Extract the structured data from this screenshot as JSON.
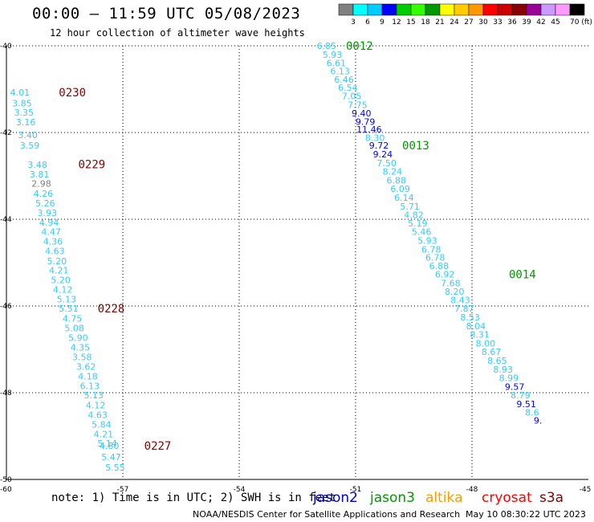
{
  "header": {
    "title": "00:00 – 11:59 UTC 05/08/2023",
    "subtitle": "12 hour collection of altimeter wave heights"
  },
  "footer": {
    "note": "note: 1) Time is in UTC; 2) SWH is in feet",
    "credit": "NOAA/NESDIS Center for Satellite Applications and Research",
    "timestamp": "May 10 08:30:22 UTC 2023"
  },
  "satellites": [
    {
      "name": "jason2",
      "color": "#0000cc"
    },
    {
      "name": "jason3",
      "color": "#009900"
    },
    {
      "name": "altika",
      "color": "#ff9900"
    },
    {
      "name": "cryosat",
      "color": "#ff0000"
    },
    {
      "name": "s3a",
      "color": "#880000"
    }
  ],
  "colorbar": {
    "colors": [
      "#808080",
      "#00ffff",
      "#00ccff",
      "#0000ff",
      "#00cc00",
      "#33ff00",
      "#009900",
      "#ffff00",
      "#ffcc00",
      "#ff9900",
      "#ff0000",
      "#cc0000",
      "#880000",
      "#990099",
      "#cc99ff",
      "#ff99ff",
      "#000000"
    ],
    "labels": [
      "3",
      "6",
      "9",
      "12",
      "15",
      "18",
      "21",
      "24",
      "27",
      "30",
      "33",
      "36",
      "39",
      "42",
      "45",
      "70 (ft)"
    ]
  },
  "chart_data": {
    "type": "scatter",
    "xlabel": "",
    "ylabel": "",
    "xlim": [
      -60,
      -45
    ],
    "ylim": [
      -50,
      -40
    ],
    "x_ticks": [
      "-60",
      "-57",
      "-54",
      "-51",
      "-48",
      "-45"
    ],
    "y_ticks": [
      "-40",
      "-42",
      "-44",
      "-46",
      "-48",
      "-50"
    ],
    "grid": true,
    "series": [
      {
        "pass": "0230",
        "label_lat": -41.07,
        "label_lon": -58.3,
        "label_color": "#880000",
        "points": [
          {
            "v": "4.01",
            "lat": -41.07,
            "lon": -59.65,
            "c": "#33ccff"
          },
          {
            "v": "3.85",
            "lat": -41.32,
            "lon": -59.6,
            "c": "#33ccff"
          },
          {
            "v": "3.35",
            "lat": -41.54,
            "lon": -59.55,
            "c": "#33ccff"
          },
          {
            "v": "3.16",
            "lat": -41.76,
            "lon": -59.5,
            "c": "#33ccff"
          },
          {
            "v": "3.40",
            "lat": -42.06,
            "lon": -59.45,
            "c": "#33ccff"
          },
          {
            "v": "3.59",
            "lat": -42.3,
            "lon": -59.4,
            "c": "#33ccff"
          }
        ]
      },
      {
        "pass": "0229",
        "label_lat": -42.73,
        "label_lon": -57.8,
        "label_color": "#880000",
        "points": [
          {
            "v": "3.48",
            "lat": -42.74,
            "lon": -59.2,
            "c": "#33ccff"
          },
          {
            "v": "3.81",
            "lat": -42.96,
            "lon": -59.15,
            "c": "#33ccff"
          },
          {
            "v": "2.98",
            "lat": -43.18,
            "lon": -59.1,
            "c": "#808080"
          },
          {
            "v": "4.26",
            "lat": -43.41,
            "lon": -59.05,
            "c": "#33ccff"
          },
          {
            "v": "5.26",
            "lat": -43.63,
            "lon": -59.0,
            "c": "#33ccff"
          },
          {
            "v": "3.93",
            "lat": -43.85,
            "lon": -58.95,
            "c": "#33ccff"
          },
          {
            "v": "4.94",
            "lat": -44.07,
            "lon": -58.9,
            "c": "#33ccff"
          },
          {
            "v": "4.47",
            "lat": -44.29,
            "lon": -58.85,
            "c": "#33ccff"
          },
          {
            "v": "4.36",
            "lat": -44.51,
            "lon": -58.8,
            "c": "#33ccff"
          },
          {
            "v": "4.63",
            "lat": -44.73,
            "lon": -58.75,
            "c": "#33ccff"
          },
          {
            "v": "5.20",
            "lat": -44.96,
            "lon": -58.7,
            "c": "#33ccff"
          },
          {
            "v": "4.21",
            "lat": -45.18,
            "lon": -58.65,
            "c": "#33ccff"
          },
          {
            "v": "5.20",
            "lat": -45.4,
            "lon": -58.6,
            "c": "#33ccff"
          },
          {
            "v": "4.12",
            "lat": -45.62,
            "lon": -58.55,
            "c": "#33ccff"
          },
          {
            "v": "5.13",
            "lat": -45.84,
            "lon": -58.45,
            "c": "#33ccff"
          }
        ]
      },
      {
        "pass": "0228",
        "label_lat": -46.06,
        "label_lon": -57.3,
        "label_color": "#880000",
        "points": [
          {
            "v": "5.51",
            "lat": -46.06,
            "lon": -58.4,
            "c": "#33ccff"
          },
          {
            "v": "4.75",
            "lat": -46.29,
            "lon": -58.3,
            "c": "#33ccff"
          },
          {
            "v": "5.08",
            "lat": -46.51,
            "lon": -58.25,
            "c": "#33ccff"
          },
          {
            "v": "5.90",
            "lat": -46.73,
            "lon": -58.15,
            "c": "#33ccff"
          },
          {
            "v": "4.35",
            "lat": -46.95,
            "lon": -58.1,
            "c": "#33ccff"
          },
          {
            "v": "3.58",
            "lat": -47.18,
            "lon": -58.05,
            "c": "#33ccff"
          },
          {
            "v": "3.62",
            "lat": -47.4,
            "lon": -57.95,
            "c": "#33ccff"
          },
          {
            "v": "4.18",
            "lat": -47.62,
            "lon": -57.9,
            "c": "#33ccff"
          },
          {
            "v": "6.13",
            "lat": -47.84,
            "lon": -57.85,
            "c": "#33ccff"
          },
          {
            "v": "5.13",
            "lat": -48.06,
            "lon": -57.75,
            "c": "#33ccff"
          },
          {
            "v": "4.12",
            "lat": -48.29,
            "lon": -57.7,
            "c": "#33ccff"
          },
          {
            "v": "4.63",
            "lat": -48.51,
            "lon": -57.65,
            "c": "#33ccff"
          },
          {
            "v": "5.84",
            "lat": -48.73,
            "lon": -57.55,
            "c": "#33ccff"
          },
          {
            "v": "4.21",
            "lat": -48.95,
            "lon": -57.5,
            "c": "#33ccff"
          },
          {
            "v": "5.14",
            "lat": -49.17,
            "lon": -57.4,
            "c": "#33ccff"
          }
        ]
      },
      {
        "pass": "0227",
        "label_lat": -49.22,
        "label_lon": -56.1,
        "label_color": "#880000",
        "points": [
          {
            "v": "4.80",
            "lat": -49.22,
            "lon": -57.35,
            "c": "#33ccff"
          },
          {
            "v": "5.47",
            "lat": -49.48,
            "lon": -57.3,
            "c": "#33ccff"
          },
          {
            "v": "5.55",
            "lat": -49.72,
            "lon": -57.2,
            "c": "#33ccff"
          }
        ]
      },
      {
        "pass": "0012",
        "label_lat": -40.0,
        "label_lon": -50.9,
        "label_color": "#009900",
        "points": [
          {
            "v": "6.85",
            "lat": -40.0,
            "lon": -51.75,
            "c": "#33ccff"
          },
          {
            "v": "5.93",
            "lat": -40.2,
            "lon": -51.6,
            "c": "#33ccff"
          },
          {
            "v": "6.61",
            "lat": -40.4,
            "lon": -51.5,
            "c": "#33ccff"
          },
          {
            "v": "6.13",
            "lat": -40.58,
            "lon": -51.4,
            "c": "#33ccff"
          },
          {
            "v": "6.46",
            "lat": -40.78,
            "lon": -51.3,
            "c": "#33ccff"
          },
          {
            "v": "6.54",
            "lat": -40.96,
            "lon": -51.2,
            "c": "#33ccff"
          },
          {
            "v": "7.05",
            "lat": -41.16,
            "lon": -51.1,
            "c": "#33ccff"
          },
          {
            "v": "7.75",
            "lat": -41.36,
            "lon": -50.95,
            "c": "#33ccff"
          },
          {
            "v": "9.40",
            "lat": -41.56,
            "lon": -50.85,
            "c": "#0000ff"
          },
          {
            "v": "9.79",
            "lat": -41.75,
            "lon": -50.75,
            "c": "#0000ff"
          },
          {
            "v": "11.46",
            "lat": -41.93,
            "lon": -50.65,
            "c": "#0000ff"
          },
          {
            "v": "8.30",
            "lat": -42.12,
            "lon": -50.5,
            "c": "#33ccff"
          },
          {
            "v": "9.72",
            "lat": -42.3,
            "lon": -50.4,
            "c": "#0000ff"
          }
        ]
      },
      {
        "pass": "0013",
        "label_lat": -42.3,
        "label_lon": -49.45,
        "label_color": "#009900",
        "points": [
          {
            "v": "9.24",
            "lat": -42.5,
            "lon": -50.3,
            "c": "#0000ff"
          },
          {
            "v": "7.50",
            "lat": -42.7,
            "lon": -50.2,
            "c": "#33ccff"
          },
          {
            "v": "8.24",
            "lat": -42.9,
            "lon": -50.05,
            "c": "#33ccff"
          },
          {
            "v": "6.88",
            "lat": -43.1,
            "lon": -49.95,
            "c": "#33ccff"
          },
          {
            "v": "6.09",
            "lat": -43.3,
            "lon": -49.85,
            "c": "#33ccff"
          },
          {
            "v": "6.14",
            "lat": -43.5,
            "lon": -49.75,
            "c": "#33ccff"
          },
          {
            "v": "5.71",
            "lat": -43.7,
            "lon": -49.6,
            "c": "#33ccff"
          },
          {
            "v": "4.82",
            "lat": -43.9,
            "lon": -49.5,
            "c": "#33ccff"
          },
          {
            "v": "5.19",
            "lat": -44.09,
            "lon": -49.4,
            "c": "#33ccff"
          },
          {
            "v": "5.46",
            "lat": -44.29,
            "lon": -49.3,
            "c": "#33ccff"
          },
          {
            "v": "5.93",
            "lat": -44.49,
            "lon": -49.15,
            "c": "#33ccff"
          },
          {
            "v": "6.78",
            "lat": -44.69,
            "lon": -49.05,
            "c": "#33ccff"
          },
          {
            "v": "6.78",
            "lat": -44.88,
            "lon": -48.95,
            "c": "#33ccff"
          },
          {
            "v": "6.88",
            "lat": -45.07,
            "lon": -48.85,
            "c": "#33ccff"
          }
        ]
      },
      {
        "pass": "0014",
        "label_lat": -45.27,
        "label_lon": -46.7,
        "label_color": "#009900",
        "points": [
          {
            "v": "6.92",
            "lat": -45.27,
            "lon": -48.7,
            "c": "#33ccff"
          },
          {
            "v": "7.68",
            "lat": -45.47,
            "lon": -48.55,
            "c": "#33ccff"
          },
          {
            "v": "8.20",
            "lat": -45.67,
            "lon": -48.45,
            "c": "#33ccff"
          },
          {
            "v": "8.43",
            "lat": -45.86,
            "lon": -48.3,
            "c": "#33ccff"
          },
          {
            "v": "7.87",
            "lat": -46.06,
            "lon": -48.2,
            "c": "#33ccff"
          },
          {
            "v": "8.53",
            "lat": -46.26,
            "lon": -48.05,
            "c": "#33ccff"
          },
          {
            "v": "8.04",
            "lat": -46.46,
            "lon": -47.9,
            "c": "#33ccff"
          },
          {
            "v": "8.31",
            "lat": -46.66,
            "lon": -47.8,
            "c": "#33ccff"
          },
          {
            "v": "8.00",
            "lat": -46.86,
            "lon": -47.65,
            "c": "#33ccff"
          },
          {
            "v": "8.67",
            "lat": -47.06,
            "lon": -47.5,
            "c": "#33ccff"
          },
          {
            "v": "8.65",
            "lat": -47.26,
            "lon": -47.35,
            "c": "#33ccff"
          },
          {
            "v": "8.93",
            "lat": -47.46,
            "lon": -47.2,
            "c": "#33ccff"
          },
          {
            "v": "8.99",
            "lat": -47.66,
            "lon": -47.05,
            "c": "#33ccff"
          },
          {
            "v": "9.57",
            "lat": -47.86,
            "lon": -46.9,
            "c": "#0000ff"
          },
          {
            "v": "8.79",
            "lat": -48.06,
            "lon": -46.75,
            "c": "#33ccff"
          },
          {
            "v": "9.51",
            "lat": -48.26,
            "lon": -46.6,
            "c": "#0000ff"
          },
          {
            "v": "8.6",
            "lat": -48.45,
            "lon": -46.45,
            "c": "#33ccff"
          },
          {
            "v": "9.",
            "lat": -48.64,
            "lon": -46.3,
            "c": "#0000ff"
          }
        ]
      }
    ]
  }
}
